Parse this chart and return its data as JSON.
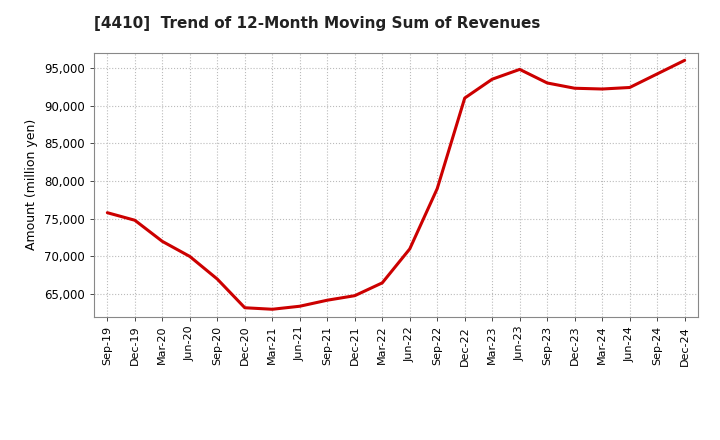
{
  "title": "[4410]  Trend of 12-Month Moving Sum of Revenues",
  "ylabel": "Amount (million yen)",
  "line_color": "#cc0000",
  "background_color": "#ffffff",
  "plot_bg_color": "#ffffff",
  "grid_color": "#bbbbbb",
  "ylim": [
    62000,
    97000
  ],
  "yticks": [
    65000,
    70000,
    75000,
    80000,
    85000,
    90000,
    95000
  ],
  "x_labels": [
    "Sep-19",
    "Dec-19",
    "Mar-20",
    "Jun-20",
    "Sep-20",
    "Dec-20",
    "Mar-21",
    "Jun-21",
    "Sep-21",
    "Dec-21",
    "Mar-22",
    "Jun-22",
    "Sep-22",
    "Dec-22",
    "Mar-23",
    "Jun-23",
    "Sep-23",
    "Dec-23",
    "Mar-24",
    "Jun-24",
    "Sep-24",
    "Dec-24"
  ],
  "values": [
    75800,
    74800,
    72000,
    70000,
    67000,
    63200,
    63000,
    63400,
    64200,
    64800,
    66500,
    71000,
    79000,
    91000,
    93500,
    94800,
    93000,
    92300,
    92200,
    92400,
    94200,
    96000
  ]
}
